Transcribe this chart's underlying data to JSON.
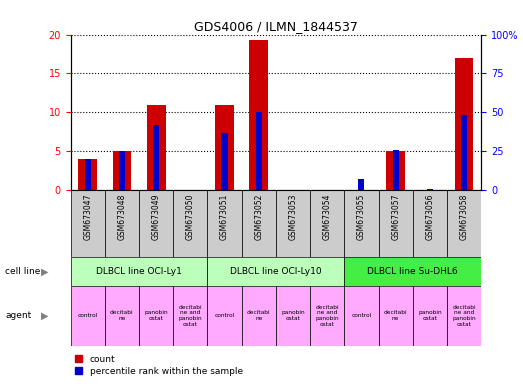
{
  "title": "GDS4006 / ILMN_1844537",
  "samples": [
    "GSM673047",
    "GSM673048",
    "GSM673049",
    "GSM673050",
    "GSM673051",
    "GSM673052",
    "GSM673053",
    "GSM673054",
    "GSM673055",
    "GSM673057",
    "GSM673056",
    "GSM673058"
  ],
  "counts": [
    4,
    5,
    11,
    0,
    11,
    19.3,
    0,
    0,
    0,
    5,
    0,
    17
  ],
  "percentiles": [
    20,
    25,
    42,
    0,
    37,
    50,
    0,
    0,
    7,
    26,
    1,
    48
  ],
  "ylim_left": [
    0,
    20
  ],
  "ylim_right": [
    0,
    100
  ],
  "yticks_left": [
    0,
    5,
    10,
    15,
    20
  ],
  "yticks_right": [
    0,
    25,
    50,
    75,
    100
  ],
  "ytick_labels_right": [
    "0",
    "25",
    "50",
    "75",
    "100%"
  ],
  "bar_color_count": "#cc0000",
  "bar_color_pct": "#0000cc",
  "cell_line_labels": [
    "DLBCL line OCI-Ly1",
    "DLBCL line OCI-Ly10",
    "DLBCL line Su-DHL6"
  ],
  "cell_line_spans": [
    [
      0,
      4
    ],
    [
      4,
      8
    ],
    [
      8,
      12
    ]
  ],
  "cell_line_colors": [
    "#bbffbb",
    "#bbffbb",
    "#44ee44"
  ],
  "agent_labels": [
    "control",
    "decitabi\nne",
    "panobin\nostat",
    "decitabi\nne and\npanobin\nostat",
    "control",
    "decitabi\nne",
    "panobin\nostat",
    "decitabi\nne and\npanobin\nostat",
    "control",
    "decitabi\nne",
    "panobin\nostat",
    "decitabi\nne and\npanobin\nostat"
  ],
  "agent_color": "#ffaaff",
  "xlabel_row_color": "#cccccc",
  "legend_count_label": "count",
  "legend_pct_label": "percentile rank within the sample",
  "row_label_cell_line": "cell line",
  "row_label_agent": "agent"
}
